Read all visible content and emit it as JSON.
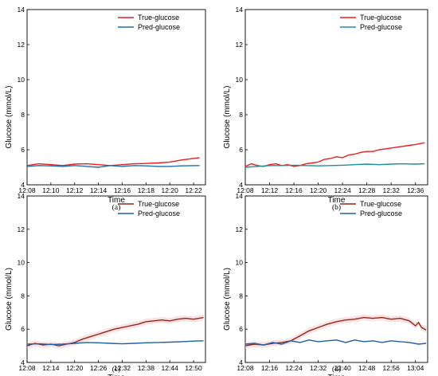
{
  "chart_data": [
    {
      "type": "line",
      "caption": "(a)",
      "xlabel": "Time",
      "ylabel": "Glucose (mmol/L)",
      "xlim": [
        0,
        15
      ],
      "ylim": [
        4,
        14
      ],
      "yticks": [
        "4",
        "6",
        "8",
        "10",
        "12",
        "14"
      ],
      "xtick_labels": [
        "12:08",
        "12:10",
        "12:12",
        "12:14",
        "12:16",
        "12:18",
        "12:20",
        "12:22"
      ],
      "xtick_minutes": [
        0,
        2,
        4,
        6,
        8,
        10,
        12,
        14
      ],
      "legend_position": "top-right",
      "band": false,
      "series": [
        {
          "name": "True-glucose",
          "color": "#ee1c1c",
          "x": [
            0,
            1,
            2,
            3,
            4,
            5,
            6,
            7,
            8,
            9,
            10,
            11,
            12,
            13,
            14.5
          ],
          "y": [
            5.1,
            5.2,
            5.15,
            5.1,
            5.18,
            5.2,
            5.15,
            5.1,
            5.15,
            5.2,
            5.22,
            5.25,
            5.3,
            5.42,
            5.55
          ]
        },
        {
          "name": "Pred-glucose",
          "color": "#1f6fa8",
          "x": [
            0,
            1,
            2,
            3,
            4,
            5,
            6,
            7,
            8,
            9,
            10,
            11,
            12,
            13,
            14.5
          ],
          "y": [
            5.05,
            5.1,
            5.08,
            5.05,
            5.1,
            5.05,
            5.0,
            5.1,
            5.05,
            5.1,
            5.08,
            5.05,
            5.05,
            5.08,
            5.1
          ]
        }
      ]
    },
    {
      "type": "line",
      "caption": "(b)",
      "xlabel": "Time",
      "ylabel": "Glucose (mmol/L)",
      "xlim": [
        0,
        30
      ],
      "ylim": [
        4,
        14
      ],
      "yticks": [
        "4",
        "6",
        "8",
        "10",
        "12",
        "14"
      ],
      "xtick_labels": [
        "12:08",
        "12:12",
        "12:16",
        "12:20",
        "12:24",
        "12:28",
        "12:32",
        "12:36"
      ],
      "xtick_minutes": [
        0,
        4,
        8,
        12,
        16,
        20,
        24,
        28
      ],
      "legend_position": "top-right",
      "band": false,
      "series": [
        {
          "name": "True-glucose",
          "color": "#ee1c1c",
          "x": [
            0,
            1,
            2,
            3,
            4,
            5,
            6,
            7,
            8,
            9,
            10,
            11,
            12,
            13,
            14,
            15,
            16,
            17,
            18,
            19,
            20,
            21,
            22,
            23,
            24,
            25,
            26,
            27,
            28,
            29.5
          ],
          "y": [
            5.05,
            5.2,
            5.1,
            5.05,
            5.15,
            5.2,
            5.1,
            5.15,
            5.05,
            5.1,
            5.2,
            5.25,
            5.3,
            5.45,
            5.5,
            5.6,
            5.55,
            5.7,
            5.75,
            5.85,
            5.9,
            5.9,
            6.0,
            6.05,
            6.1,
            6.15,
            6.2,
            6.25,
            6.3,
            6.4
          ]
        },
        {
          "name": "Pred-glucose",
          "color": "#1a8f9a",
          "x": [
            0,
            2,
            4,
            6,
            8,
            10,
            12,
            14,
            16,
            18,
            20,
            22,
            24,
            26,
            28,
            29.5
          ],
          "y": [
            5.0,
            5.05,
            5.1,
            5.1,
            5.12,
            5.1,
            5.08,
            5.1,
            5.12,
            5.15,
            5.18,
            5.15,
            5.18,
            5.2,
            5.18,
            5.2
          ]
        }
      ]
    },
    {
      "type": "line",
      "caption": "(c)",
      "xlabel": "Time",
      "ylabel": "Glucose (mmol/L)",
      "xlim": [
        0,
        45
      ],
      "ylim": [
        4,
        14
      ],
      "yticks": [
        "4",
        "6",
        "8",
        "10",
        "12",
        "14"
      ],
      "xtick_labels": [
        "12:08",
        "12:14",
        "12:20",
        "12:26",
        "12:32",
        "12:38",
        "12:44",
        "12:50"
      ],
      "xtick_minutes": [
        0,
        6,
        12,
        18,
        24,
        30,
        36,
        42
      ],
      "legend_position": "top-right",
      "band": true,
      "series": [
        {
          "name": "True-glucose",
          "color": "#8b2a18",
          "x": [
            0,
            2,
            4,
            6,
            8,
            10,
            12,
            14,
            16,
            18,
            20,
            22,
            24,
            26,
            28,
            30,
            32,
            34,
            36,
            38,
            40,
            42,
            44.5
          ],
          "y": [
            5.0,
            5.15,
            5.05,
            5.1,
            5.0,
            5.1,
            5.2,
            5.4,
            5.55,
            5.7,
            5.85,
            6.0,
            6.1,
            6.2,
            6.3,
            6.45,
            6.5,
            6.55,
            6.5,
            6.6,
            6.65,
            6.6,
            6.7
          ]
        },
        {
          "name": "Pred-glucose",
          "color": "#1f5fa8",
          "x": [
            0,
            3,
            6,
            9,
            12,
            15,
            18,
            21,
            24,
            27,
            30,
            33,
            36,
            39,
            42,
            44.5
          ],
          "y": [
            5.1,
            5.12,
            5.08,
            5.1,
            5.15,
            5.2,
            5.18,
            5.15,
            5.12,
            5.15,
            5.18,
            5.2,
            5.22,
            5.25,
            5.28,
            5.3
          ]
        }
      ]
    },
    {
      "type": "line",
      "caption": "(d)",
      "xlabel": "Time",
      "ylabel": "Glucose (mmol/L)",
      "xlim": [
        0,
        60
      ],
      "ylim": [
        4,
        14
      ],
      "yticks": [
        "4",
        "6",
        "8",
        "10",
        "12",
        "14"
      ],
      "xtick_labels": [
        "12:08",
        "12:16",
        "12:24",
        "12:32",
        "12:40",
        "12:48",
        "12:56",
        "13:04"
      ],
      "xtick_minutes": [
        0,
        8,
        16,
        24,
        32,
        40,
        48,
        56
      ],
      "legend_position": "top-right",
      "band": true,
      "series": [
        {
          "name": "True-glucose",
          "color": "#8b2a18",
          "x": [
            0,
            3,
            6,
            9,
            12,
            15,
            18,
            21,
            24,
            27,
            30,
            33,
            36,
            39,
            42,
            45,
            48,
            51,
            54,
            56,
            57,
            58,
            59.5
          ],
          "y": [
            5.0,
            5.1,
            5.05,
            5.15,
            5.2,
            5.3,
            5.6,
            5.9,
            6.1,
            6.3,
            6.45,
            6.55,
            6.6,
            6.7,
            6.65,
            6.7,
            6.6,
            6.65,
            6.5,
            6.2,
            6.4,
            6.1,
            5.95
          ]
        },
        {
          "name": "Pred-glucose",
          "color": "#1f5fa8",
          "x": [
            0,
            3,
            6,
            9,
            12,
            15,
            18,
            21,
            24,
            27,
            30,
            33,
            36,
            39,
            42,
            45,
            48,
            51,
            54,
            57,
            59.5
          ],
          "y": [
            5.1,
            5.15,
            5.05,
            5.2,
            5.1,
            5.3,
            5.2,
            5.35,
            5.25,
            5.3,
            5.35,
            5.2,
            5.35,
            5.25,
            5.3,
            5.2,
            5.3,
            5.25,
            5.2,
            5.1,
            5.15
          ]
        }
      ]
    }
  ]
}
